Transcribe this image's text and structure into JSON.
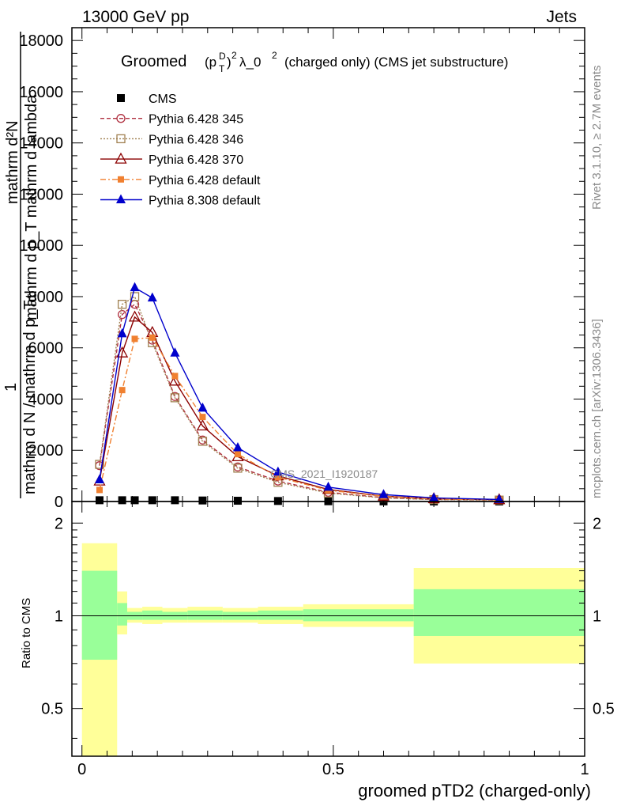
{
  "header": {
    "left": "13000 GeV pp",
    "right": "Jets"
  },
  "title": {
    "prefix": "Groomed",
    "p": "(p",
    "sup_d": "D",
    "sub_t": "T",
    "close": ")",
    "exp2": "2",
    "lambda": "λ_0",
    "exp2b": "2",
    "rest": "(charged only) (CMS jet substructure)"
  },
  "side_labels": {
    "rivet": "Rivet 3.1.10, ≥ 2.7M events",
    "mcplots": "mcplots.cern.ch [arXiv:1306.3436]"
  },
  "watermark": "CMS_2021_I1920187",
  "ylabel_main": {
    "numerator": "mathrm d²N",
    "numerator_line2": "mathrm d p_T mathrm d lambda",
    "one": "1",
    "denominator": "mathrm d N / mathrm d p_T"
  },
  "ylabel_ratio": "Ratio to CMS",
  "xlabel": "groomed pTD2 (charged-only)",
  "colors": {
    "cms": "#000000",
    "py345": "#b03040",
    "py346": "#a08050",
    "py370": "#8b0000",
    "py6def": "#f08030",
    "py8def": "#0000cc",
    "band_inner": "#99ff99",
    "band_outer": "#ffff99"
  },
  "chart_data": [
    {
      "type": "line",
      "panel": "main",
      "xlim": [
        -0.02,
        1.0
      ],
      "ylim": [
        0,
        18500
      ],
      "yticks": [
        0,
        2000,
        4000,
        6000,
        8000,
        10000,
        12000,
        14000,
        16000,
        18000
      ],
      "ytick_labels": [
        "0",
        "2000",
        "4000",
        "6000",
        "8000",
        "10000",
        "12000",
        "14000",
        "16000",
        "18000"
      ],
      "x": [
        0.035,
        0.08,
        0.105,
        0.14,
        0.185,
        0.24,
        0.31,
        0.39,
        0.49,
        0.6,
        0.7,
        0.83
      ],
      "series": [
        {
          "name": "CMS",
          "key": "cms",
          "marker": "square",
          "dash": "none",
          "values": [
            50,
            50,
            50,
            50,
            50,
            40,
            30,
            20,
            10,
            5,
            3,
            2
          ]
        },
        {
          "name": "Pythia 6.428 345",
          "key": "py345",
          "marker": "circle-open",
          "dash": "5,3",
          "values": [
            1400,
            7300,
            7700,
            6300,
            4100,
            2400,
            1350,
            800,
            360,
            150,
            80,
            60
          ]
        },
        {
          "name": "Pythia 6.428 346",
          "key": "py346",
          "marker": "square-open",
          "dash": "2,2",
          "values": [
            1450,
            7700,
            8000,
            6200,
            4050,
            2350,
            1300,
            750,
            330,
            140,
            75,
            55
          ]
        },
        {
          "name": "Pythia 6.428 370",
          "key": "py370",
          "marker": "triangle-open",
          "dash": "none",
          "values": [
            800,
            5800,
            7200,
            6600,
            4700,
            2950,
            1750,
            1000,
            470,
            210,
            110,
            70
          ]
        },
        {
          "name": "Pythia 6.428 default",
          "key": "py6def",
          "marker": "square-small",
          "dash": "7,3,2,3",
          "values": [
            450,
            4350,
            6350,
            6400,
            4900,
            3300,
            1850,
            950,
            440,
            200,
            100,
            60
          ]
        },
        {
          "name": "Pythia 8.308 default",
          "key": "py8def",
          "marker": "triangle",
          "dash": "none",
          "values": [
            850,
            6550,
            8350,
            7950,
            5800,
            3650,
            2100,
            1150,
            560,
            270,
            140,
            80
          ]
        }
      ]
    },
    {
      "type": "area",
      "panel": "ratio",
      "xlim": [
        -0.02,
        1.0
      ],
      "ylim": [
        0.35,
        2.35
      ],
      "yticks": [
        0.5,
        1,
        2
      ],
      "ytick_labels": [
        "0.5",
        "1",
        "2"
      ],
      "xticks": [
        0,
        0.5,
        1
      ],
      "xtick_labels": [
        "0",
        "0.5",
        "1"
      ],
      "bins": [
        {
          "x0": 0.0,
          "x1": 0.07,
          "inner": [
            0.72,
            1.4
          ],
          "outer": [
            0.3,
            1.72
          ]
        },
        {
          "x0": 0.07,
          "x1": 0.09,
          "inner": [
            0.93,
            1.1
          ],
          "outer": [
            0.87,
            1.2
          ]
        },
        {
          "x0": 0.09,
          "x1": 0.12,
          "inner": [
            0.97,
            1.03
          ],
          "outer": [
            0.95,
            1.06
          ]
        },
        {
          "x0": 0.12,
          "x1": 0.16,
          "inner": [
            0.97,
            1.04
          ],
          "outer": [
            0.94,
            1.07
          ]
        },
        {
          "x0": 0.16,
          "x1": 0.21,
          "inner": [
            0.97,
            1.03
          ],
          "outer": [
            0.95,
            1.06
          ]
        },
        {
          "x0": 0.21,
          "x1": 0.28,
          "inner": [
            0.97,
            1.04
          ],
          "outer": [
            0.95,
            1.07
          ]
        },
        {
          "x0": 0.28,
          "x1": 0.35,
          "inner": [
            0.97,
            1.03
          ],
          "outer": [
            0.95,
            1.06
          ]
        },
        {
          "x0": 0.35,
          "x1": 0.44,
          "inner": [
            0.97,
            1.04
          ],
          "outer": [
            0.94,
            1.07
          ]
        },
        {
          "x0": 0.44,
          "x1": 0.66,
          "inner": [
            0.96,
            1.05
          ],
          "outer": [
            0.92,
            1.09
          ]
        },
        {
          "x0": 0.66,
          "x1": 1.0,
          "inner": [
            0.86,
            1.22
          ],
          "outer": [
            0.7,
            1.43
          ]
        }
      ]
    }
  ]
}
